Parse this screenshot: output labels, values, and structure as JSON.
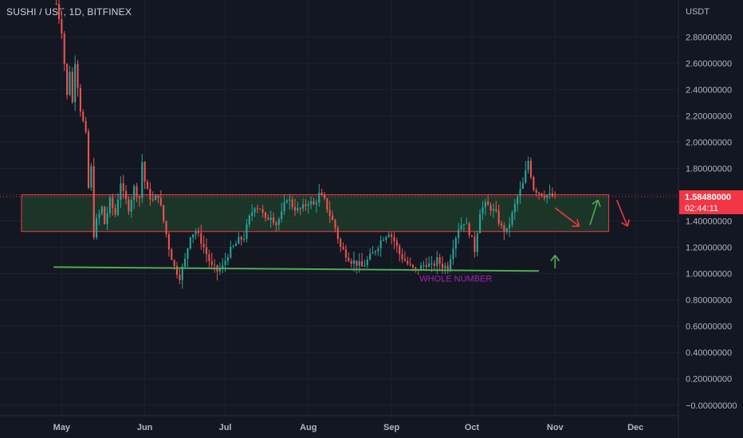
{
  "header": {
    "symbol": "SUSHI / UST, 1D, BITFINEX"
  },
  "colors": {
    "background": "#131722",
    "up": "#26a69a",
    "down": "#ef5350",
    "zone_fill": "#1e3b2a",
    "zone_border": "#f23645",
    "support": "#4caf50",
    "annotation": "#9c27b0",
    "price_label": "#f23645"
  },
  "chart_data": {
    "type": "candlestick",
    "symbol": "SUSHI / UST",
    "interval": "1D",
    "exchange": "BITFINEX",
    "y_unit": "USDT",
    "ylim": [
      -0.08,
      3.08
    ],
    "y_ticks": [
      "2.80000000",
      "2.60000000",
      "2.40000000",
      "2.20000000",
      "2.00000000",
      "1.80000000",
      "1.60000000",
      "1.40000000",
      "1.20000000",
      "1.00000000",
      "0.80000000",
      "0.60000000",
      "0.40000000",
      "0.20000000",
      "−0.00000000"
    ],
    "y_tick_values": [
      2.8,
      2.6,
      2.4,
      2.2,
      2.0,
      1.8,
      1.6,
      1.4,
      1.2,
      1.0,
      0.8,
      0.6,
      0.4,
      0.2,
      0.0
    ],
    "x_ticks": [
      "May",
      "Jun",
      "Jul",
      "Aug",
      "Sep",
      "Oct",
      "Nov",
      "Dec"
    ],
    "x_tick_days": [
      0,
      31,
      61,
      92,
      123,
      153,
      184,
      214
    ],
    "x_range_days": [
      -23,
      230
    ],
    "last_day": 184,
    "close_path": [
      [
        -2,
        3.05
      ],
      [
        0,
        2.85
      ],
      [
        2,
        2.35
      ],
      [
        3,
        2.55
      ],
      [
        4,
        2.3
      ],
      [
        5,
        2.62
      ],
      [
        7,
        2.25
      ],
      [
        9,
        2.05
      ],
      [
        10,
        1.65
      ],
      [
        11,
        1.8
      ],
      [
        12,
        1.3
      ],
      [
        13,
        1.4
      ],
      [
        15,
        1.5
      ],
      [
        16,
        1.38
      ],
      [
        18,
        1.55
      ],
      [
        20,
        1.45
      ],
      [
        22,
        1.7
      ],
      [
        23,
        1.6
      ],
      [
        25,
        1.5
      ],
      [
        27,
        1.65
      ],
      [
        29,
        1.58
      ],
      [
        30,
        1.85
      ],
      [
        31,
        1.7
      ],
      [
        32,
        1.62
      ],
      [
        34,
        1.55
      ],
      [
        36,
        1.6
      ],
      [
        38,
        1.4
      ],
      [
        40,
        1.2
      ],
      [
        42,
        1.05
      ],
      [
        44,
        0.98
      ],
      [
        46,
        1.1
      ],
      [
        48,
        1.3
      ],
      [
        50,
        1.32
      ],
      [
        52,
        1.25
      ],
      [
        54,
        1.15
      ],
      [
        56,
        1.05
      ],
      [
        58,
        1.02
      ],
      [
        60,
        1.05
      ],
      [
        62,
        1.15
      ],
      [
        64,
        1.2
      ],
      [
        66,
        1.25
      ],
      [
        68,
        1.28
      ],
      [
        70,
        1.42
      ],
      [
        72,
        1.52
      ],
      [
        74,
        1.5
      ],
      [
        76,
        1.4
      ],
      [
        78,
        1.45
      ],
      [
        80,
        1.38
      ],
      [
        82,
        1.45
      ],
      [
        84,
        1.58
      ],
      [
        86,
        1.52
      ],
      [
        88,
        1.48
      ],
      [
        90,
        1.5
      ],
      [
        92,
        1.55
      ],
      [
        94,
        1.52
      ],
      [
        96,
        1.6
      ],
      [
        98,
        1.55
      ],
      [
        100,
        1.45
      ],
      [
        102,
        1.35
      ],
      [
        104,
        1.2
      ],
      [
        106,
        1.15
      ],
      [
        108,
        1.1
      ],
      [
        110,
        1.08
      ],
      [
        112,
        1.05
      ],
      [
        114,
        1.1
      ],
      [
        116,
        1.15
      ],
      [
        118,
        1.22
      ],
      [
        120,
        1.28
      ],
      [
        122,
        1.32
      ],
      [
        124,
        1.25
      ],
      [
        126,
        1.15
      ],
      [
        128,
        1.1
      ],
      [
        130,
        1.05
      ],
      [
        132,
        1.02
      ],
      [
        134,
        1.05
      ],
      [
        136,
        1.08
      ],
      [
        138,
        1.05
      ],
      [
        140,
        1.1
      ],
      [
        142,
        1.06
      ],
      [
        144,
        1.05
      ],
      [
        146,
        1.22
      ],
      [
        148,
        1.35
      ],
      [
        150,
        1.4
      ],
      [
        152,
        1.32
      ],
      [
        154,
        1.18
      ],
      [
        156,
        1.48
      ],
      [
        158,
        1.52
      ],
      [
        160,
        1.5
      ],
      [
        162,
        1.45
      ],
      [
        164,
        1.35
      ],
      [
        166,
        1.32
      ],
      [
        168,
        1.45
      ],
      [
        170,
        1.58
      ],
      [
        172,
        1.68
      ],
      [
        174,
        1.86
      ],
      [
        176,
        1.65
      ],
      [
        178,
        1.62
      ],
      [
        180,
        1.6
      ],
      [
        182,
        1.59
      ],
      [
        184,
        1.5848
      ]
    ],
    "zone": {
      "low": 1.32,
      "high": 1.6,
      "start_day": -15,
      "end_day": 204
    },
    "support_line": {
      "price_start": 1.05,
      "price_end": 1.02,
      "start_day": -3,
      "end_day": 178
    },
    "arrows": [
      {
        "type": "down",
        "color": "#f23645",
        "from": [
          184,
          1.5
        ],
        "to": [
          193,
          1.36
        ]
      },
      {
        "type": "up",
        "color": "#4caf50",
        "from": [
          197,
          1.37
        ],
        "to": [
          200,
          1.56
        ]
      },
      {
        "type": "down",
        "color": "#f23645",
        "from": [
          207,
          1.56
        ],
        "to": [
          211,
          1.36
        ]
      },
      {
        "type": "up",
        "color": "#4caf50",
        "from": [
          184,
          1.04
        ],
        "to": [
          184,
          1.14
        ]
      }
    ],
    "annotation": {
      "text": "WHOLE NUMBER",
      "day": 147,
      "price": 0.94
    },
    "last_price": {
      "value": "1.58480000",
      "countdown": "02:44:11",
      "price": 1.5848
    },
    "grid": true,
    "legend": "none"
  }
}
